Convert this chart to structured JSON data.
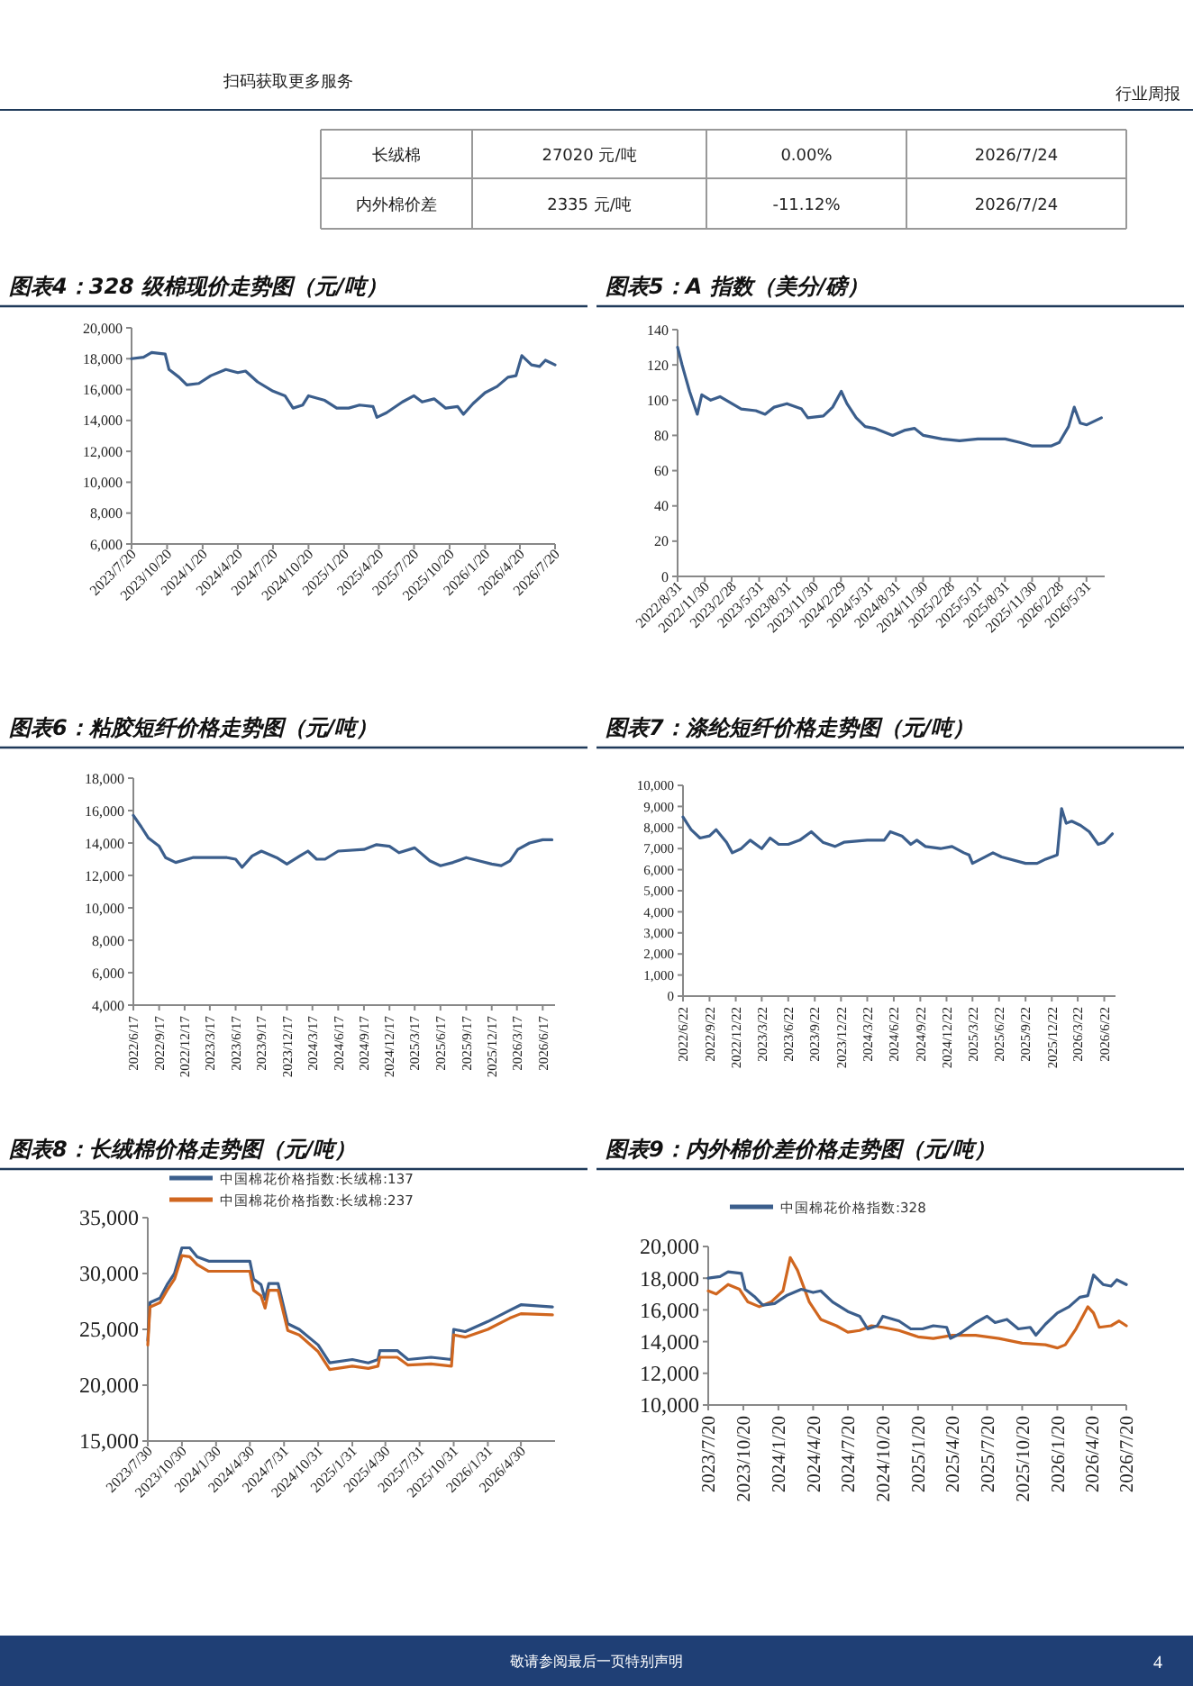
{
  "chart_data": [
    {
      "type": "other",
      "annotations": [
        "长绒棉",
        "27020 元/吨",
        "0.00%",
        "2026/7/24",
        "内外棉价差",
        "2335 元/吨",
        "-11.12%",
        "2026/7/24",
        "扫码获取更多服务",
        "行业周报",
        "敬请参阅最后一页特别声明",
        "4"
      ]
    },
    {
      "type": "line",
      "title": "图表4：328 级棉现价走势图（元/吨）",
      "xlim": [
        "2023-07-20",
        "2026-07-20"
      ],
      "ylim": [
        6000,
        20000
      ],
      "yticks": [
        {
          "value": 6000,
          "label": "6,000"
        },
        {
          "value": 8000,
          "label": "8,000"
        },
        {
          "value": 10000,
          "label": "10,000"
        },
        {
          "value": 12000,
          "label": "12,000"
        },
        {
          "value": 14000,
          "label": "14,000"
        },
        {
          "value": 16000,
          "label": "16,000"
        },
        {
          "value": 18000,
          "label": "18,000"
        },
        {
          "value": 20000,
          "label": "20,000"
        }
      ],
      "xticks": [
        {
          "value": "2023-07-20",
          "label": "2023/7/20"
        },
        {
          "value": "2023-10-20",
          "label": "2023/10/20"
        },
        {
          "value": "2024-01-20",
          "label": "2024/1/20"
        },
        {
          "value": "2024-04-20",
          "label": "2024/4/20"
        },
        {
          "value": "2024-07-20",
          "label": "2024/7/20"
        },
        {
          "value": "2024-10-20",
          "label": "2024/10/20"
        },
        {
          "value": "2025-01-20",
          "label": "2025/1/20"
        },
        {
          "value": "2025-04-20",
          "label": "2025/4/20"
        },
        {
          "value": "2025-07-20",
          "label": "2025/7/20"
        },
        {
          "value": "2025-10-20",
          "label": "2025/10/20"
        },
        {
          "value": "2026-01-20",
          "label": "2026/1/20"
        },
        {
          "value": "2026-04-20",
          "label": "2026/4/20"
        },
        {
          "value": "2026-07-20",
          "label": "2026/7/20"
        }
      ],
      "series": [
        {
          "color": "#3b5e8c",
          "x": [
            "2023-07-20",
            "2023-08-20",
            "2023-09-10",
            "2023-10-15",
            "2023-10-25",
            "2023-11-20",
            "2023-12-10",
            "2024-01-10",
            "2024-02-10",
            "2024-03-20",
            "2024-04-20",
            "2024-05-10",
            "2024-06-10",
            "2024-07-20",
            "2024-08-20",
            "2024-09-10",
            "2024-10-05",
            "2024-10-20",
            "2024-12-01",
            "2025-01-01",
            "2025-02-01",
            "2025-03-01",
            "2025-04-05",
            "2025-04-15",
            "2025-05-10",
            "2025-06-20",
            "2025-07-20",
            "2025-08-10",
            "2025-09-10",
            "2025-10-10",
            "2025-11-10",
            "2025-11-25",
            "2025-12-20",
            "2026-01-20",
            "2026-02-20",
            "2026-03-20",
            "2026-04-10",
            "2026-04-25",
            "2026-05-20",
            "2026-06-10",
            "2026-06-25",
            "2026-07-20"
          ],
          "values": [
            18000,
            18100,
            18400,
            18300,
            17300,
            16800,
            16300,
            16400,
            16900,
            17300,
            17100,
            17200,
            16500,
            15900,
            15600,
            14800,
            15000,
            15600,
            15300,
            14800,
            14800,
            15000,
            14900,
            14200,
            14500,
            15200,
            15600,
            15200,
            15400,
            14800,
            14900,
            14400,
            15100,
            15800,
            16200,
            16800,
            16900,
            18200,
            17600,
            17500,
            17900,
            17600
          ]
        }
      ]
    },
    {
      "type": "line",
      "title": "图表5：A 指数（美分/磅）",
      "xlim": [
        "2022-08-31",
        "2026-07-31"
      ],
      "ylim": [
        0,
        140
      ],
      "yticks": [
        0,
        20,
        40,
        60,
        80,
        100,
        120,
        140
      ],
      "xticks": [
        {
          "value": "2022-08-31",
          "label": "2022/8/31"
        },
        {
          "value": "2022-11-30",
          "label": "2022/11/30"
        },
        {
          "value": "2023-02-28",
          "label": "2023/2/28"
        },
        {
          "value": "2023-05-31",
          "label": "2023/5/31"
        },
        {
          "value": "2023-08-31",
          "label": "2023/8/31"
        },
        {
          "value": "2023-11-30",
          "label": "2023/11/30"
        },
        {
          "value": "2024-02-29",
          "label": "2024/2/29"
        },
        {
          "value": "2024-05-31",
          "label": "2024/5/31"
        },
        {
          "value": "2024-08-31",
          "label": "2024/8/31"
        },
        {
          "value": "2024-11-30",
          "label": "2024/11/30"
        },
        {
          "value": "2025-02-28",
          "label": "2025/2/28"
        },
        {
          "value": "2025-05-31",
          "label": "2025/5/31"
        },
        {
          "value": "2025-08-31",
          "label": "2025/8/31"
        },
        {
          "value": "2025-11-30",
          "label": "2025/11/30"
        },
        {
          "value": "2026-02-28",
          "label": "2026/2/28"
        },
        {
          "value": "2026-05-31",
          "label": "2026/5/31"
        }
      ],
      "series": [
        {
          "color": "#3b5e8c",
          "x": [
            "2022-08-31",
            "2022-09-15",
            "2022-10-10",
            "2022-11-05",
            "2022-11-20",
            "2022-12-20",
            "2023-01-20",
            "2023-03-01",
            "2023-04-01",
            "2023-05-20",
            "2023-06-20",
            "2023-07-20",
            "2023-09-01",
            "2023-10-20",
            "2023-11-10",
            "2024-01-01",
            "2024-02-01",
            "2024-03-01",
            "2024-03-20",
            "2024-04-20",
            "2024-05-20",
            "2024-06-20",
            "2024-08-20",
            "2024-10-01",
            "2024-11-01",
            "2024-12-01",
            "2025-02-01",
            "2025-04-01",
            "2025-06-01",
            "2025-09-01",
            "2025-10-20",
            "2025-12-01",
            "2026-02-01",
            "2026-03-01",
            "2026-04-01",
            "2026-04-20",
            "2026-05-10",
            "2026-06-01",
            "2026-07-20"
          ],
          "values": [
            130,
            120,
            105,
            92,
            103,
            100,
            102,
            98,
            95,
            94,
            92,
            96,
            98,
            95,
            90,
            91,
            96,
            105,
            98,
            90,
            85,
            84,
            80,
            83,
            84,
            80,
            78,
            77,
            78,
            78,
            76,
            74,
            74,
            76,
            85,
            96,
            87,
            86,
            90
          ]
        }
      ]
    },
    {
      "type": "line",
      "title": "图表6：粘胶短纤价格走势图（元/吨）",
      "xlim": [
        "2022-06-17",
        "2026-07-31"
      ],
      "ylim": [
        4000,
        18000
      ],
      "yticks": [
        {
          "value": 4000,
          "label": "4,000"
        },
        {
          "value": 6000,
          "label": "6,000"
        },
        {
          "value": 8000,
          "label": "8,000"
        },
        {
          "value": 10000,
          "label": "10,000"
        },
        {
          "value": 12000,
          "label": "12,000"
        },
        {
          "value": 14000,
          "label": "14,000"
        },
        {
          "value": 16000,
          "label": "16,000"
        },
        {
          "value": 18000,
          "label": "18,000"
        }
      ],
      "xticks": [
        {
          "value": "2022-06-17",
          "label": "2022/6/17"
        },
        {
          "value": "2022-09-17",
          "label": "2022/9/17"
        },
        {
          "value": "2022-12-17",
          "label": "2022/12/17"
        },
        {
          "value": "2023-03-17",
          "label": "2023/3/17"
        },
        {
          "value": "2023-06-17",
          "label": "2023/6/17"
        },
        {
          "value": "2023-09-17",
          "label": "2023/9/17"
        },
        {
          "value": "2023-12-17",
          "label": "2023/12/17"
        },
        {
          "value": "2024-03-17",
          "label": "2024/3/17"
        },
        {
          "value": "2024-06-17",
          "label": "2024/6/17"
        },
        {
          "value": "2024-09-17",
          "label": "2024/9/17"
        },
        {
          "value": "2024-12-17",
          "label": "2024/12/17"
        },
        {
          "value": "2025-03-17",
          "label": "2025/3/17"
        },
        {
          "value": "2025-06-17",
          "label": "2025/6/17"
        },
        {
          "value": "2025-09-17",
          "label": "2025/9/17"
        },
        {
          "value": "2025-12-17",
          "label": "2025/12/17"
        },
        {
          "value": "2026-03-17",
          "label": "2026/3/17"
        },
        {
          "value": "2026-06-17",
          "label": "2026/6/17"
        }
      ],
      "series": [
        {
          "color": "#3b5e8c",
          "x": [
            "2022-06-17",
            "2022-07-15",
            "2022-08-10",
            "2022-09-17",
            "2022-10-10",
            "2022-11-15",
            "2023-01-15",
            "2023-03-17",
            "2023-05-17",
            "2023-06-17",
            "2023-07-10",
            "2023-08-15",
            "2023-09-17",
            "2023-11-10",
            "2023-12-17",
            "2024-02-01",
            "2024-03-01",
            "2024-04-01",
            "2024-05-01",
            "2024-06-17",
            "2024-09-17",
            "2024-11-01",
            "2024-12-17",
            "2025-01-20",
            "2025-03-17",
            "2025-05-10",
            "2025-06-17",
            "2025-08-01",
            "2025-09-17",
            "2025-11-01",
            "2025-12-17",
            "2026-01-20",
            "2026-02-20",
            "2026-03-20",
            "2026-05-01",
            "2026-06-17",
            "2026-07-20"
          ],
          "values": [
            15700,
            15000,
            14300,
            13800,
            13100,
            12800,
            13100,
            13100,
            13100,
            13000,
            12500,
            13200,
            13500,
            13100,
            12700,
            13200,
            13500,
            13000,
            13000,
            13500,
            13600,
            13900,
            13800,
            13400,
            13700,
            12900,
            12600,
            12800,
            13100,
            12900,
            12700,
            12600,
            12900,
            13600,
            14000,
            14200,
            14200
          ]
        }
      ]
    },
    {
      "type": "line",
      "title": "图表7：涤纶短纤价格走势图（元/吨）",
      "xlim": [
        "2022-06-22",
        "2026-07-31"
      ],
      "ylim": [
        0,
        10000
      ],
      "yticks": [
        0,
        {
          "value": 1000,
          "label": "1,000"
        },
        {
          "value": 2000,
          "label": "2,000"
        },
        {
          "value": 3000,
          "label": "3,000"
        },
        {
          "value": 4000,
          "label": "4,000"
        },
        {
          "value": 5000,
          "label": "5,000"
        },
        {
          "value": 6000,
          "label": "6,000"
        },
        {
          "value": 7000,
          "label": "7,000"
        },
        {
          "value": 8000,
          "label": "8,000"
        },
        {
          "value": 9000,
          "label": "9,000"
        },
        {
          "value": 10000,
          "label": "10,000"
        }
      ],
      "xticks": [
        {
          "value": "2022-06-22",
          "label": "2022/6/22"
        },
        {
          "value": "2022-09-22",
          "label": "2022/9/22"
        },
        {
          "value": "2022-12-22",
          "label": "2022/12/22"
        },
        {
          "value": "2023-03-22",
          "label": "2023/3/22"
        },
        {
          "value": "2023-06-22",
          "label": "2023/6/22"
        },
        {
          "value": "2023-09-22",
          "label": "2023/9/22"
        },
        {
          "value": "2023-12-22",
          "label": "2023/12/22"
        },
        {
          "value": "2024-03-22",
          "label": "2024/3/22"
        },
        {
          "value": "2024-06-22",
          "label": "2024/6/22"
        },
        {
          "value": "2024-09-22",
          "label": "2024/9/22"
        },
        {
          "value": "2024-12-22",
          "label": "2024/12/22"
        },
        {
          "value": "2025-03-22",
          "label": "2025/3/22"
        },
        {
          "value": "2025-06-22",
          "label": "2025/6/22"
        },
        {
          "value": "2025-09-22",
          "label": "2025/9/22"
        },
        {
          "value": "2025-12-22",
          "label": "2025/12/22"
        },
        {
          "value": "2026-03-22",
          "label": "2026/3/22"
        },
        {
          "value": "2026-06-22",
          "label": "2026/6/22"
        }
      ],
      "series": [
        {
          "color": "#3b5e8c",
          "x": [
            "2022-06-22",
            "2022-07-20",
            "2022-08-20",
            "2022-09-22",
            "2022-10-15",
            "2022-11-20",
            "2022-12-10",
            "2023-01-10",
            "2023-02-10",
            "2023-03-22",
            "2023-04-20",
            "2023-05-20",
            "2023-06-22",
            "2023-08-01",
            "2023-09-10",
            "2023-10-20",
            "2023-12-01",
            "2024-01-01",
            "2024-03-22",
            "2024-05-20",
            "2024-06-10",
            "2024-07-20",
            "2024-08-20",
            "2024-09-10",
            "2024-10-10",
            "2024-12-01",
            "2025-01-10",
            "2025-02-20",
            "2025-03-10",
            "2025-03-22",
            "2025-04-20",
            "2025-06-01",
            "2025-07-01",
            "2025-09-22",
            "2025-11-01",
            "2025-12-01",
            "2026-01-10",
            "2026-01-25",
            "2026-02-10",
            "2026-03-01",
            "2026-04-01",
            "2026-05-01",
            "2026-06-01",
            "2026-06-22",
            "2026-07-20"
          ],
          "values": [
            8500,
            7900,
            7500,
            7600,
            7900,
            7300,
            6800,
            7000,
            7400,
            7000,
            7500,
            7200,
            7200,
            7400,
            7800,
            7300,
            7100,
            7300,
            7400,
            7400,
            7800,
            7600,
            7200,
            7400,
            7100,
            7000,
            7100,
            6800,
            6700,
            6300,
            6500,
            6800,
            6600,
            6300,
            6300,
            6500,
            6700,
            8900,
            8200,
            8300,
            8100,
            7800,
            7200,
            7300,
            7700
          ]
        }
      ]
    },
    {
      "type": "line",
      "title": "图表8：长绒棉价格走势图（元/吨）",
      "xlim": [
        "2023-07-30",
        "2026-07-31"
      ],
      "ylim": [
        15000,
        35000
      ],
      "legend": "top left",
      "yticks": [
        {
          "value": 15000,
          "label": "15,000"
        },
        {
          "value": 20000,
          "label": "20,000"
        },
        {
          "value": 25000,
          "label": "25,000"
        },
        {
          "value": 30000,
          "label": "30,000"
        },
        {
          "value": 35000,
          "label": "35,000"
        }
      ],
      "xticks": [
        {
          "value": "2023-07-30",
          "label": "2023/7/30"
        },
        {
          "value": "2023-10-30",
          "label": "2023/10/30"
        },
        {
          "value": "2024-01-30",
          "label": "2024/1/30"
        },
        {
          "value": "2024-04-30",
          "label": "2024/4/30"
        },
        {
          "value": "2024-07-31",
          "label": "2024/7/31"
        },
        {
          "value": "2024-10-31",
          "label": "2024/10/31"
        },
        {
          "value": "2025-01-31",
          "label": "2025/1/31"
        },
        {
          "value": "2025-04-30",
          "label": "2025/4/30"
        },
        {
          "value": "2025-07-31",
          "label": "2025/7/31"
        },
        {
          "value": "2025-10-31",
          "label": "2025/10/31"
        },
        {
          "value": "2026-01-31",
          "label": "2026/1/31"
        },
        {
          "value": "2026-04-30",
          "label": "2026/4/30"
        }
      ],
      "x": [
        "2023-07-30",
        "2023-08-05",
        "2023-09-01",
        "2023-09-20",
        "2023-10-10",
        "2023-10-30",
        "2023-11-20",
        "2023-12-10",
        "2024-01-10",
        "2024-04-30",
        "2024-05-10",
        "2024-05-30",
        "2024-06-10",
        "2024-06-20",
        "2024-07-15",
        "2024-08-10",
        "2024-09-10",
        "2024-10-31",
        "2024-12-01",
        "2025-01-31",
        "2025-03-15",
        "2025-04-10",
        "2025-04-15",
        "2025-06-01",
        "2025-06-30",
        "2025-08-31",
        "2025-10-25",
        "2025-10-31",
        "2025-12-01",
        "2026-01-31",
        "2026-03-31",
        "2026-04-30",
        "2026-07-24"
      ],
      "series": [
        {
          "name": "中国棉花价格指数:长绒棉:137",
          "color": "#3b5e8c",
          "values": [
            24000,
            27400,
            27800,
            29000,
            30000,
            32300,
            32300,
            31500,
            31100,
            31100,
            29500,
            29000,
            27700,
            29100,
            29100,
            25500,
            25000,
            23600,
            22000,
            22300,
            22000,
            22300,
            23100,
            23100,
            22300,
            22500,
            22300,
            25000,
            24800,
            25700,
            26700,
            27200,
            27000
          ]
        },
        {
          "name": "中国棉花价格指数:长绒棉:237",
          "color": "#d0661f",
          "values": [
            23600,
            27000,
            27400,
            28500,
            29500,
            31600,
            31500,
            30800,
            30200,
            30200,
            28500,
            28000,
            26900,
            28500,
            28500,
            24900,
            24500,
            23000,
            21400,
            21700,
            21500,
            21700,
            22500,
            22500,
            21800,
            21900,
            21700,
            24500,
            24300,
            25000,
            26000,
            26400,
            26300
          ]
        }
      ]
    },
    {
      "type": "line",
      "title": "图表9：内外棉价差价格走势图（元/吨）",
      "xlim": [
        "2023-07-20",
        "2026-07-20"
      ],
      "ylim": [
        10000,
        20000
      ],
      "legend": "top left",
      "yticks": [
        {
          "value": 10000,
          "label": "10,000"
        },
        {
          "value": 12000,
          "label": "12,000"
        },
        {
          "value": 14000,
          "label": "14,000"
        },
        {
          "value": 16000,
          "label": "16,000"
        },
        {
          "value": 18000,
          "label": "18,000"
        },
        {
          "value": 20000,
          "label": "20,000"
        }
      ],
      "xticks": [
        {
          "value": "2023-07-20",
          "label": "2023/7/20"
        },
        {
          "value": "2023-10-20",
          "label": "2023/10/20"
        },
        {
          "value": "2024-01-20",
          "label": "2024/1/20"
        },
        {
          "value": "2024-04-20",
          "label": "2024/4/20"
        },
        {
          "value": "2024-07-20",
          "label": "2024/7/20"
        },
        {
          "value": "2024-10-20",
          "label": "2024/10/20"
        },
        {
          "value": "2025-01-20",
          "label": "2025/1/20"
        },
        {
          "value": "2025-04-20",
          "label": "2025/4/20"
        },
        {
          "value": "2025-07-20",
          "label": "2025/7/20"
        },
        {
          "value": "2025-10-20",
          "label": "2025/10/20"
        },
        {
          "value": "2026-01-20",
          "label": "2026/1/20"
        },
        {
          "value": "2026-04-20",
          "label": "2026/4/20"
        },
        {
          "value": "2026-07-20",
          "label": "2026/7/20"
        }
      ],
      "series": [
        {
          "color": "#d0661f",
          "x": [
            "2023-07-20",
            "2023-08-10",
            "2023-09-10",
            "2023-10-10",
            "2023-11-01",
            "2023-12-01",
            "2024-01-01",
            "2024-02-01",
            "2024-02-20",
            "2024-03-10",
            "2024-04-10",
            "2024-05-10",
            "2024-06-20",
            "2024-07-20",
            "2024-08-20",
            "2024-09-20",
            "2024-10-20",
            "2024-12-01",
            "2025-01-20",
            "2025-03-01",
            "2025-04-20",
            "2025-06-20",
            "2025-08-20",
            "2025-10-20",
            "2025-12-20",
            "2026-01-20",
            "2026-02-10",
            "2026-03-10",
            "2026-04-10",
            "2026-04-25",
            "2026-05-10",
            "2026-06-10",
            "2026-07-01",
            "2026-07-20"
          ],
          "values": [
            17200,
            17000,
            17600,
            17300,
            16500,
            16200,
            16500,
            17200,
            19300,
            18500,
            16500,
            15400,
            15000,
            14600,
            14700,
            15000,
            14900,
            14700,
            14300,
            14200,
            14400,
            14400,
            14200,
            13900,
            13800,
            13600,
            13800,
            14800,
            16200,
            15800,
            14900,
            15000,
            15300,
            15000
          ]
        },
        {
          "name": "中国棉花价格指数:328",
          "color": "#3b5e8c",
          "x": [
            "2023-07-20",
            "2023-08-20",
            "2023-09-10",
            "2023-10-15",
            "2023-10-25",
            "2023-11-20",
            "2023-12-10",
            "2024-01-10",
            "2024-02-10",
            "2024-03-20",
            "2024-04-20",
            "2024-05-10",
            "2024-06-10",
            "2024-07-20",
            "2024-08-20",
            "2024-09-10",
            "2024-10-05",
            "2024-10-20",
            "2024-12-01",
            "2025-01-01",
            "2025-02-01",
            "2025-03-01",
            "2025-04-05",
            "2025-04-15",
            "2025-05-10",
            "2025-06-20",
            "2025-07-20",
            "2025-08-10",
            "2025-09-10",
            "2025-10-10",
            "2025-11-10",
            "2025-11-25",
            "2025-12-20",
            "2026-01-20",
            "2026-02-20",
            "2026-03-20",
            "2026-04-10",
            "2026-04-25",
            "2026-05-20",
            "2026-06-10",
            "2026-06-25",
            "2026-07-20"
          ],
          "values": [
            18000,
            18100,
            18400,
            18300,
            17300,
            16800,
            16300,
            16400,
            16900,
            17300,
            17100,
            17200,
            16500,
            15900,
            15600,
            14800,
            15000,
            15600,
            15300,
            14800,
            14800,
            15000,
            14900,
            14200,
            14500,
            15200,
            15600,
            15200,
            15400,
            14800,
            14900,
            14400,
            15100,
            15800,
            16200,
            16800,
            16900,
            18200,
            17600,
            17500,
            17900,
            17600
          ]
        }
      ]
    }
  ]
}
